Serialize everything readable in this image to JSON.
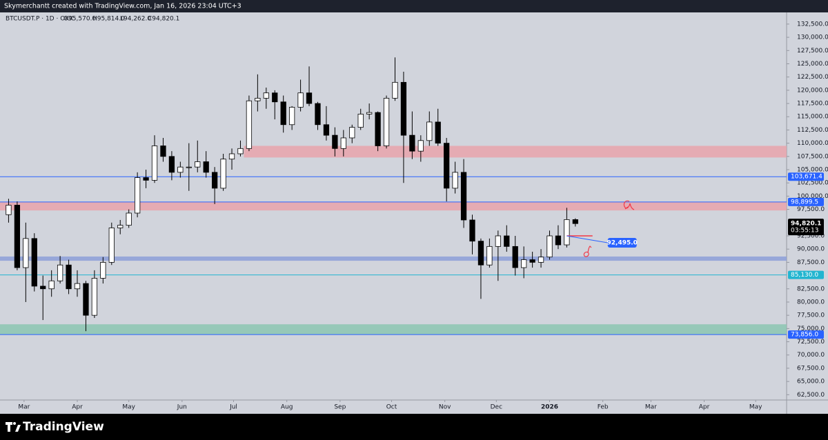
{
  "attribution": "Skymerchantt created with TradingView.com, Jan 16, 2026 23:04 UTC+3",
  "brand": "TradingView",
  "chart_data": {
    "type": "candlestick",
    "header": {
      "symbol": "BTCUSDT.P · 1D · OKX",
      "open": "O95,570.0",
      "high": "H95,814.0",
      "low": "L94,262.0",
      "close": "C94,820.1"
    },
    "x": [
      0,
      5,
      10,
      15,
      20,
      25,
      30,
      35,
      40,
      45,
      50,
      55,
      60,
      65,
      70,
      75,
      80,
      85,
      90,
      95,
      100,
      105,
      110,
      115,
      120,
      125,
      130,
      135,
      140,
      145,
      150,
      155,
      160,
      165,
      170,
      175,
      180,
      185,
      190,
      195,
      200,
      205,
      210,
      215,
      220,
      225,
      230,
      235,
      240,
      245,
      250,
      255,
      260,
      265,
      270,
      275,
      280,
      285,
      290,
      295,
      300,
      305,
      310,
      315,
      320,
      325,
      330
    ],
    "open": [
      96500,
      98300,
      86500,
      92000,
      83000,
      82500,
      84000,
      87000,
      82500,
      83500,
      77500,
      84500,
      87500,
      94000,
      94500,
      96800,
      103500,
      103000,
      109500,
      107500,
      104500,
      105500,
      105500,
      106500,
      104500,
      101500,
      107000,
      108000,
      109000,
      118000,
      118500,
      119500,
      117800,
      113500,
      116800,
      119500,
      117500,
      113500,
      111500,
      109000,
      111000,
      113000,
      115500,
      115800,
      109500,
      118500,
      121500,
      111500,
      108500,
      110500,
      114000,
      110000,
      101500,
      104500,
      95500,
      91500,
      87000,
      90500,
      92500,
      90500,
      86500,
      88000,
      87500,
      88500,
      92500,
      90800,
      95570
    ],
    "high": [
      99500,
      99000,
      95000,
      93000,
      85000,
      86000,
      88700,
      88000,
      86000,
      84000,
      86000,
      88500,
      95000,
      95500,
      97500,
      104500,
      105000,
      111500,
      111000,
      108500,
      106500,
      110000,
      110500,
      108500,
      105500,
      108000,
      109000,
      110500,
      119000,
      123000,
      120500,
      120000,
      119000,
      117000,
      122000,
      124500,
      117800,
      117000,
      113000,
      112500,
      113500,
      116500,
      117500,
      116000,
      119000,
      126200,
      123500,
      116000,
      111500,
      116000,
      116500,
      111000,
      106500,
      107000,
      96500,
      92000,
      92000,
      93500,
      94500,
      92500,
      90500,
      89500,
      90000,
      93500,
      94500,
      97800,
      95814
    ],
    "low": [
      95000,
      86000,
      80000,
      82000,
      76600,
      81000,
      83500,
      81500,
      81000,
      74500,
      77000,
      83500,
      87000,
      92800,
      94000,
      96000,
      101500,
      102500,
      106500,
      103000,
      103500,
      101000,
      104500,
      103500,
      98500,
      101000,
      105000,
      107500,
      108500,
      116000,
      116500,
      114500,
      112000,
      112500,
      116000,
      117000,
      112500,
      110500,
      107500,
      107500,
      110000,
      112500,
      114500,
      108500,
      109000,
      118000,
      102500,
      107000,
      106500,
      109500,
      109500,
      99000,
      100500,
      94000,
      89000,
      80600,
      86500,
      84000,
      89500,
      85000,
      84500,
      86500,
      86500,
      88000,
      90000,
      90300,
      94262
    ],
    "close": [
      98300,
      86500,
      92000,
      83000,
      82500,
      84000,
      87000,
      82500,
      83500,
      77500,
      84500,
      87500,
      94000,
      94500,
      96800,
      103500,
      103000,
      109500,
      107500,
      104500,
      105500,
      105500,
      106500,
      104500,
      101500,
      107000,
      108000,
      109000,
      118000,
      118500,
      119500,
      117800,
      113500,
      116800,
      119500,
      117500,
      113500,
      111500,
      109000,
      111000,
      113000,
      115500,
      115800,
      109500,
      118500,
      121500,
      111500,
      108500,
      110500,
      114000,
      110000,
      101500,
      104500,
      95500,
      91500,
      87000,
      90500,
      92500,
      90500,
      86500,
      88000,
      87500,
      88500,
      92500,
      90800,
      95570,
      94820.1
    ],
    "up_color": "#ffffff",
    "down_color": "#000000",
    "wick_color": "#000000",
    "xlim": [
      -5,
      453
    ],
    "xticks": [
      {
        "value": 9,
        "label": "Mar"
      },
      {
        "value": 40,
        "label": "Apr"
      },
      {
        "value": 70,
        "label": "May"
      },
      {
        "value": 101,
        "label": "Jun"
      },
      {
        "value": 131,
        "label": "Jul"
      },
      {
        "value": 162,
        "label": "Aug"
      },
      {
        "value": 193,
        "label": "Sep"
      },
      {
        "value": 223,
        "label": "Oct"
      },
      {
        "value": 254,
        "label": "Nov"
      },
      {
        "value": 284,
        "label": "Dec"
      },
      {
        "value": 315,
        "label": "2026"
      },
      {
        "value": 346,
        "label": "Feb"
      },
      {
        "value": 374,
        "label": "Mar"
      },
      {
        "value": 405,
        "label": "Apr"
      },
      {
        "value": 435,
        "label": "May"
      }
    ],
    "ylim": [
      61500,
      134700
    ],
    "yticks": [
      {
        "value": 132500,
        "label": "132,500.0"
      },
      {
        "value": 130000,
        "label": "130,000.0"
      },
      {
        "value": 127500,
        "label": "127,500.0"
      },
      {
        "value": 125000,
        "label": "125,000.0"
      },
      {
        "value": 122500,
        "label": "122,500.0"
      },
      {
        "value": 120000,
        "label": "120,000.0"
      },
      {
        "value": 117500,
        "label": "117,500.0"
      },
      {
        "value": 115000,
        "label": "115,000.0"
      },
      {
        "value": 112500,
        "label": "112,500.0"
      },
      {
        "value": 110000,
        "label": "110,000.0"
      },
      {
        "value": 107500,
        "label": "107,500.0"
      },
      {
        "value": 105000,
        "label": "105,000.0"
      },
      {
        "value": 102500,
        "label": "102,500.0"
      },
      {
        "value": 100000,
        "label": "100,000.0"
      },
      {
        "value": 97500,
        "label": "97,500.0"
      },
      {
        "value": 92500,
        "label": "92,500.0"
      },
      {
        "value": 90000,
        "label": "90,000.0"
      },
      {
        "value": 87500,
        "label": "87,500.0"
      },
      {
        "value": 82500,
        "label": "82,500.0"
      },
      {
        "value": 80000,
        "label": "80,000.0"
      },
      {
        "value": 77500,
        "label": "77,500.0"
      },
      {
        "value": 75000,
        "label": "75,000.0"
      },
      {
        "value": 72500,
        "label": "72,500.0"
      },
      {
        "value": 70000,
        "label": "70,000.0"
      },
      {
        "value": 67500,
        "label": "67,500.0"
      },
      {
        "value": 65000,
        "label": "65,000.0"
      },
      {
        "value": 62500,
        "label": "62,500.0"
      }
    ],
    "zones": [
      {
        "from": 107300,
        "to": 109500,
        "x_from": 137,
        "color": "#e9a3ab"
      },
      {
        "from": 97300,
        "to": 98899.5,
        "color": "#e9a3ab"
      },
      {
        "from": 87800,
        "to": 88600,
        "color": "#8d9fd8"
      },
      {
        "from": 73856,
        "to": 75800,
        "color": "#8cc5b2"
      }
    ],
    "levels": [
      {
        "value": 103671.4,
        "label": "103,671.4",
        "color": "#2962ff"
      },
      {
        "value": 98899.5,
        "label": "98,899.5",
        "color": "#2962ff"
      },
      {
        "value": 85130,
        "label": "85,130.0",
        "color": "#22b5d0"
      },
      {
        "value": 73856,
        "label": "73,856.0",
        "color": "#2962ff"
      }
    ],
    "last_price": {
      "value": 94820.1,
      "label": "94,820.1",
      "countdown": "03:55:13"
    },
    "callout": {
      "value": 92495,
      "label": "92,495.0",
      "x_from": 325,
      "x_to": 340,
      "line_color": "#f23645",
      "color": "#2962ff"
    }
  }
}
